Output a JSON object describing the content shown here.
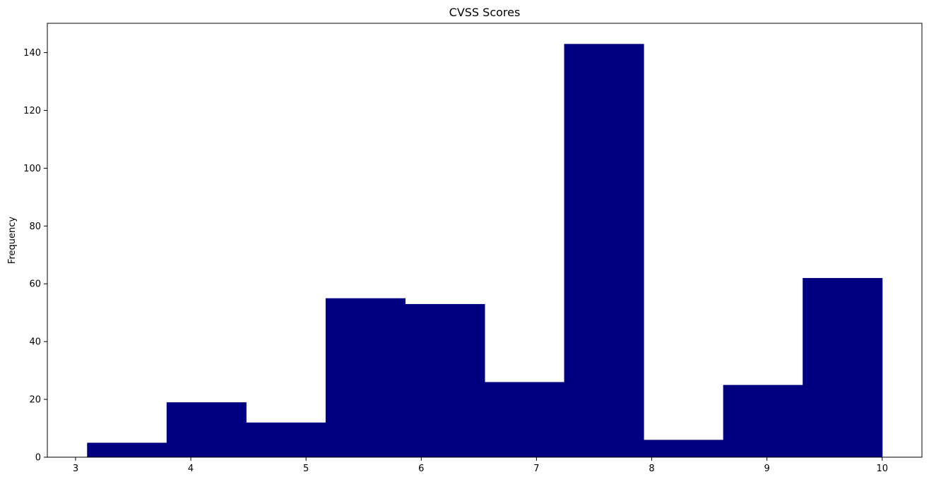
{
  "chart_data": {
    "type": "bar",
    "title": "CVSS Scores",
    "xlabel": "",
    "ylabel": "Frequency",
    "bin_edges": [
      3.1,
      3.79,
      4.48,
      5.17,
      5.86,
      6.55,
      7.24,
      7.93,
      8.62,
      9.31,
      10.0
    ],
    "values": [
      5,
      19,
      12,
      55,
      53,
      26,
      143,
      6,
      25,
      62
    ],
    "xlim": [
      2.755,
      10.345
    ],
    "ylim": [
      0,
      150.15
    ],
    "x_ticks": [
      3,
      4,
      5,
      6,
      7,
      8,
      9,
      10
    ],
    "y_ticks": [
      0,
      20,
      40,
      60,
      80,
      100,
      120,
      140
    ],
    "bar_color": "#000080",
    "grid": false
  }
}
